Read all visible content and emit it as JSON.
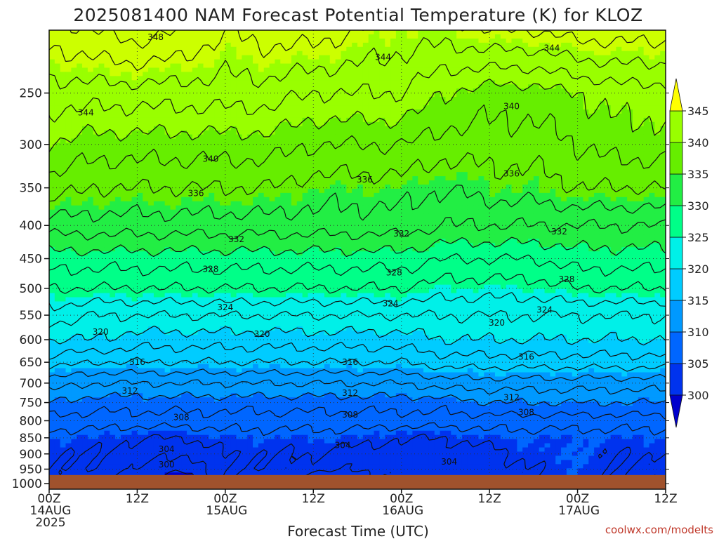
{
  "chart_data": {
    "type": "heatmap",
    "title": "2025081400 NAM Forecast Potential Temperature (K) for KLOZ",
    "xlabel": "Forecast Time (UTC)",
    "ylabel": "",
    "credit": "coolwx.com/modelts",
    "x_ticks": [
      {
        "hour": 0,
        "lines": [
          "00Z",
          "14AUG",
          "2025"
        ]
      },
      {
        "hour": 12,
        "lines": [
          "12Z"
        ]
      },
      {
        "hour": 24,
        "lines": [
          "00Z",
          "15AUG"
        ]
      },
      {
        "hour": 36,
        "lines": [
          "12Z"
        ]
      },
      {
        "hour": 48,
        "lines": [
          "00Z",
          "16AUG"
        ]
      },
      {
        "hour": 60,
        "lines": [
          "12Z"
        ]
      },
      {
        "hour": 72,
        "lines": [
          "00Z",
          "17AUG"
        ]
      },
      {
        "hour": 84,
        "lines": [
          "12Z"
        ]
      }
    ],
    "x_range_hours": [
      0,
      84
    ],
    "y_ticks_hPa": [
      250,
      300,
      350,
      400,
      450,
      500,
      550,
      600,
      650,
      700,
      750,
      800,
      850,
      900,
      950,
      1000
    ],
    "y_range_hPa": [
      200,
      1020
    ],
    "y_scale": "log-pressure (inverted)",
    "ground_level_hPa": 970,
    "grid": "dotted",
    "colorbar": {
      "min": 300,
      "max": 345,
      "step": 5,
      "labels": [
        "345",
        "340",
        "335",
        "330",
        "325",
        "320",
        "315",
        "310",
        "305",
        "300"
      ],
      "colors": [
        "#0000cc",
        "#0033ee",
        "#0066ff",
        "#0099ff",
        "#00ccff",
        "#00f0e8",
        "#00ff88",
        "#22ee44",
        "#66ee00",
        "#99ff00",
        "#ccff00",
        "#ffff00"
      ],
      "extend": "both"
    },
    "contour_interval_K": 2,
    "contour_levels_K": [
      298,
      300,
      302,
      304,
      306,
      308,
      310,
      312,
      314,
      316,
      318,
      320,
      322,
      324,
      326,
      328,
      330,
      332,
      334,
      336,
      338,
      340,
      342,
      344,
      346,
      348
    ],
    "contour_labels": [
      {
        "value": "348",
        "hour": 14.5,
        "hPa": 205
      },
      {
        "value": "344",
        "hour": 45.5,
        "hPa": 220
      },
      {
        "value": "344",
        "hour": 68.5,
        "hPa": 213
      },
      {
        "value": "344",
        "hour": 5,
        "hPa": 268
      },
      {
        "value": "340",
        "hour": 63,
        "hPa": 262
      },
      {
        "value": "340",
        "hour": 22,
        "hPa": 316
      },
      {
        "value": "336",
        "hour": 43,
        "hPa": 340
      },
      {
        "value": "336",
        "hour": 63,
        "hPa": 333
      },
      {
        "value": "336",
        "hour": 20,
        "hPa": 357
      },
      {
        "value": "332",
        "hour": 25.5,
        "hPa": 420
      },
      {
        "value": "332",
        "hour": 48,
        "hPa": 412
      },
      {
        "value": "332",
        "hour": 69.5,
        "hPa": 409
      },
      {
        "value": "328",
        "hour": 22,
        "hPa": 467
      },
      {
        "value": "328",
        "hour": 47,
        "hPa": 473
      },
      {
        "value": "328",
        "hour": 70.5,
        "hPa": 484
      },
      {
        "value": "324",
        "hour": 24,
        "hPa": 535
      },
      {
        "value": "324",
        "hour": 46.5,
        "hPa": 528
      },
      {
        "value": "324",
        "hour": 67.5,
        "hPa": 540
      },
      {
        "value": "320",
        "hour": 61,
        "hPa": 565
      },
      {
        "value": "320",
        "hour": 7,
        "hPa": 584
      },
      {
        "value": "320",
        "hour": 29,
        "hPa": 588
      },
      {
        "value": "316",
        "hour": 12,
        "hPa": 650
      },
      {
        "value": "316",
        "hour": 41,
        "hPa": 650
      },
      {
        "value": "316",
        "hour": 65,
        "hPa": 638
      },
      {
        "value": "312",
        "hour": 11,
        "hPa": 720
      },
      {
        "value": "312",
        "hour": 41,
        "hPa": 725
      },
      {
        "value": "312",
        "hour": 63,
        "hPa": 737
      },
      {
        "value": "308",
        "hour": 18,
        "hPa": 790
      },
      {
        "value": "308",
        "hour": 41,
        "hPa": 783
      },
      {
        "value": "308",
        "hour": 65,
        "hPa": 776
      },
      {
        "value": "304",
        "hour": 40,
        "hPa": 873
      },
      {
        "value": "304",
        "hour": 16,
        "hPa": 885
      },
      {
        "value": "304",
        "hour": 54.5,
        "hPa": 925
      },
      {
        "value": "300",
        "hour": 16,
        "hPa": 935
      }
    ]
  }
}
